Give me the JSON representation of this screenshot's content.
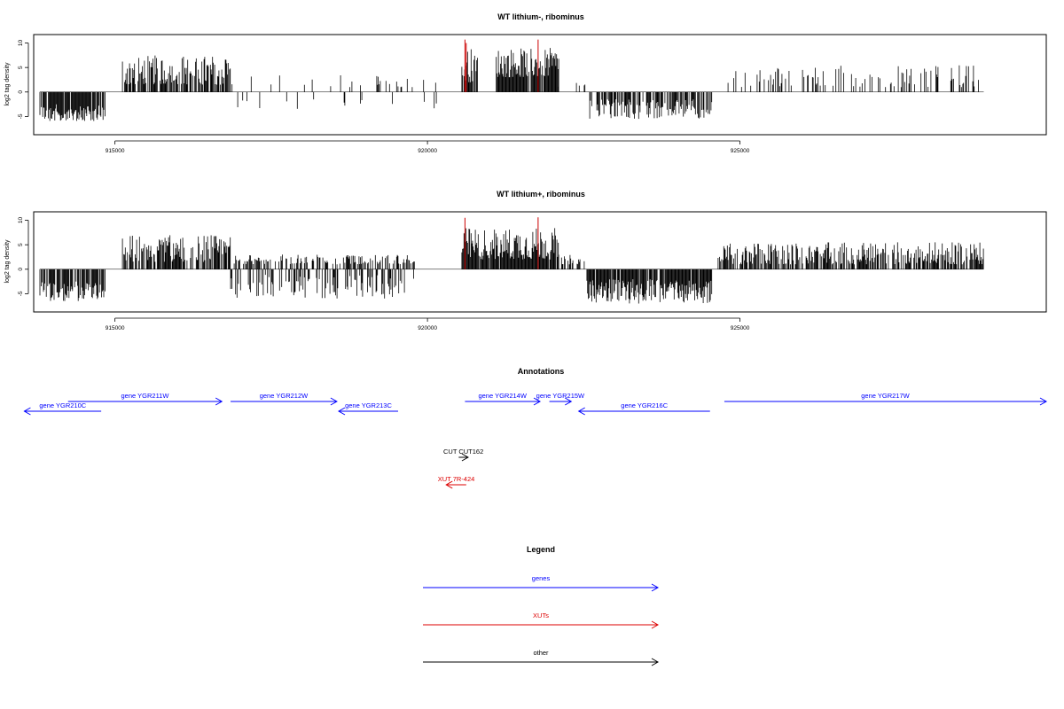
{
  "chart_data": [
    {
      "type": "bar",
      "title": "WT lithium-, ribominus",
      "ylabel": "log2 tag density",
      "ylim": [
        -8,
        11
      ],
      "xlim": [
        913700,
        929900
      ],
      "x_ticks": [
        915000,
        920000,
        925000
      ],
      "x_tick_labels": [
        "915000",
        "920000",
        "925000"
      ],
      "y_ticks": [
        -5,
        0,
        5,
        10
      ],
      "y_tick_labels": [
        "-5",
        "0",
        "5",
        "10"
      ],
      "regions": [
        {
          "start": 913800,
          "end": 914850,
          "min": -6.0,
          "max": -2.5,
          "density": 0.85
        },
        {
          "start": 915120,
          "end": 916850,
          "min": 1.5,
          "max": 7.5,
          "density": 0.75
        },
        {
          "start": 916850,
          "end": 920200,
          "min": 1.0,
          "max": 3.5,
          "density": 0.08
        },
        {
          "start": 916850,
          "end": 920200,
          "min": -3.5,
          "max": -1.5,
          "density": 0.05
        },
        {
          "start": 920550,
          "end": 920800,
          "min": 2.0,
          "max": 9.0,
          "density": 0.9
        },
        {
          "start": 921100,
          "end": 922100,
          "min": 3.0,
          "max": 9.0,
          "density": 0.95
        },
        {
          "start": 922100,
          "end": 922550,
          "min": 1.0,
          "max": 2.5,
          "density": 0.15
        },
        {
          "start": 922550,
          "end": 924550,
          "min": -5.5,
          "max": -1.5,
          "density": 0.65
        },
        {
          "start": 924650,
          "end": 928900,
          "min": 1.0,
          "max": 5.5,
          "density": 0.22
        }
      ],
      "highlights": [
        {
          "x": 920600,
          "value": 10.7,
          "color": "#cc0000"
        },
        {
          "x": 920620,
          "value": 10.0,
          "color": "#cc0000"
        },
        {
          "x": 921770,
          "value": 10.7,
          "color": "#cc0000"
        }
      ]
    },
    {
      "type": "bar",
      "title": "WT lithium+, ribominus",
      "ylabel": "log2 tag density",
      "ylim": [
        -8,
        11
      ],
      "xlim": [
        913700,
        929900
      ],
      "x_ticks": [
        915000,
        920000,
        925000
      ],
      "x_tick_labels": [
        "915000",
        "920000",
        "925000"
      ],
      "y_ticks": [
        -5,
        0,
        5,
        10
      ],
      "y_tick_labels": [
        "-5",
        "0",
        "5",
        "10"
      ],
      "regions": [
        {
          "start": 913800,
          "end": 914850,
          "min": -6.5,
          "max": -2.5,
          "density": 0.85
        },
        {
          "start": 915120,
          "end": 916850,
          "min": 1.5,
          "max": 7.0,
          "density": 0.8
        },
        {
          "start": 916850,
          "end": 919800,
          "min": 1.0,
          "max": 3.0,
          "density": 0.45
        },
        {
          "start": 916850,
          "end": 919800,
          "min": -6.0,
          "max": -1.0,
          "density": 0.35
        },
        {
          "start": 920550,
          "end": 922100,
          "min": 2.0,
          "max": 8.5,
          "density": 0.95
        },
        {
          "start": 922100,
          "end": 922550,
          "min": 1.0,
          "max": 3.0,
          "density": 0.5
        },
        {
          "start": 922550,
          "end": 924550,
          "min": -7.0,
          "max": -2.0,
          "density": 0.9
        },
        {
          "start": 924650,
          "end": 928900,
          "min": 1.0,
          "max": 5.5,
          "density": 0.7
        }
      ],
      "highlights": [
        {
          "x": 920600,
          "value": 10.5,
          "color": "#cc0000"
        },
        {
          "x": 921770,
          "value": 10.6,
          "color": "#cc0000"
        }
      ]
    },
    {
      "type": "table",
      "title": "Annotations",
      "features": [
        {
          "label": "gene YGR210C",
          "start": 913550,
          "end": 914780,
          "strand": "-",
          "color": "#0000ff",
          "row": 2
        },
        {
          "label": "gene YGR211W",
          "start": 914250,
          "end": 916710,
          "strand": "+",
          "color": "#0000ff",
          "row": 1
        },
        {
          "label": "gene YGR212W",
          "start": 916850,
          "end": 918550,
          "strand": "+",
          "color": "#0000ff",
          "row": 1
        },
        {
          "label": "gene YGR213C",
          "start": 918580,
          "end": 919530,
          "strand": "-",
          "color": "#0000ff",
          "row": 2
        },
        {
          "label": "gene YGR214W",
          "start": 920600,
          "end": 921800,
          "strand": "+",
          "color": "#0000ff",
          "row": 1
        },
        {
          "label": "gene YGR215W",
          "start": 921950,
          "end": 922300,
          "strand": "+",
          "color": "#0000ff",
          "row": 1
        },
        {
          "label": "gene YGR216C",
          "start": 922420,
          "end": 924520,
          "strand": "-",
          "color": "#0000ff",
          "row": 2
        },
        {
          "label": "gene YGR217W",
          "start": 924750,
          "end": 929900,
          "strand": "+",
          "color": "#0000ff",
          "row": 1
        },
        {
          "label": "CUT CUT162",
          "start": 920500,
          "end": 920650,
          "strand": "+",
          "color": "#000000",
          "row": 3
        },
        {
          "label": "XUT 7R-424",
          "start": 920300,
          "end": 920620,
          "strand": "-",
          "color": "#dd0000",
          "row": 4
        }
      ]
    },
    {
      "type": "table",
      "title": "Legend",
      "entries": [
        {
          "label": "genes",
          "color": "#0000ff"
        },
        {
          "label": "XUTs",
          "color": "#dd0000"
        },
        {
          "label": "other",
          "color": "#000000"
        }
      ]
    }
  ]
}
